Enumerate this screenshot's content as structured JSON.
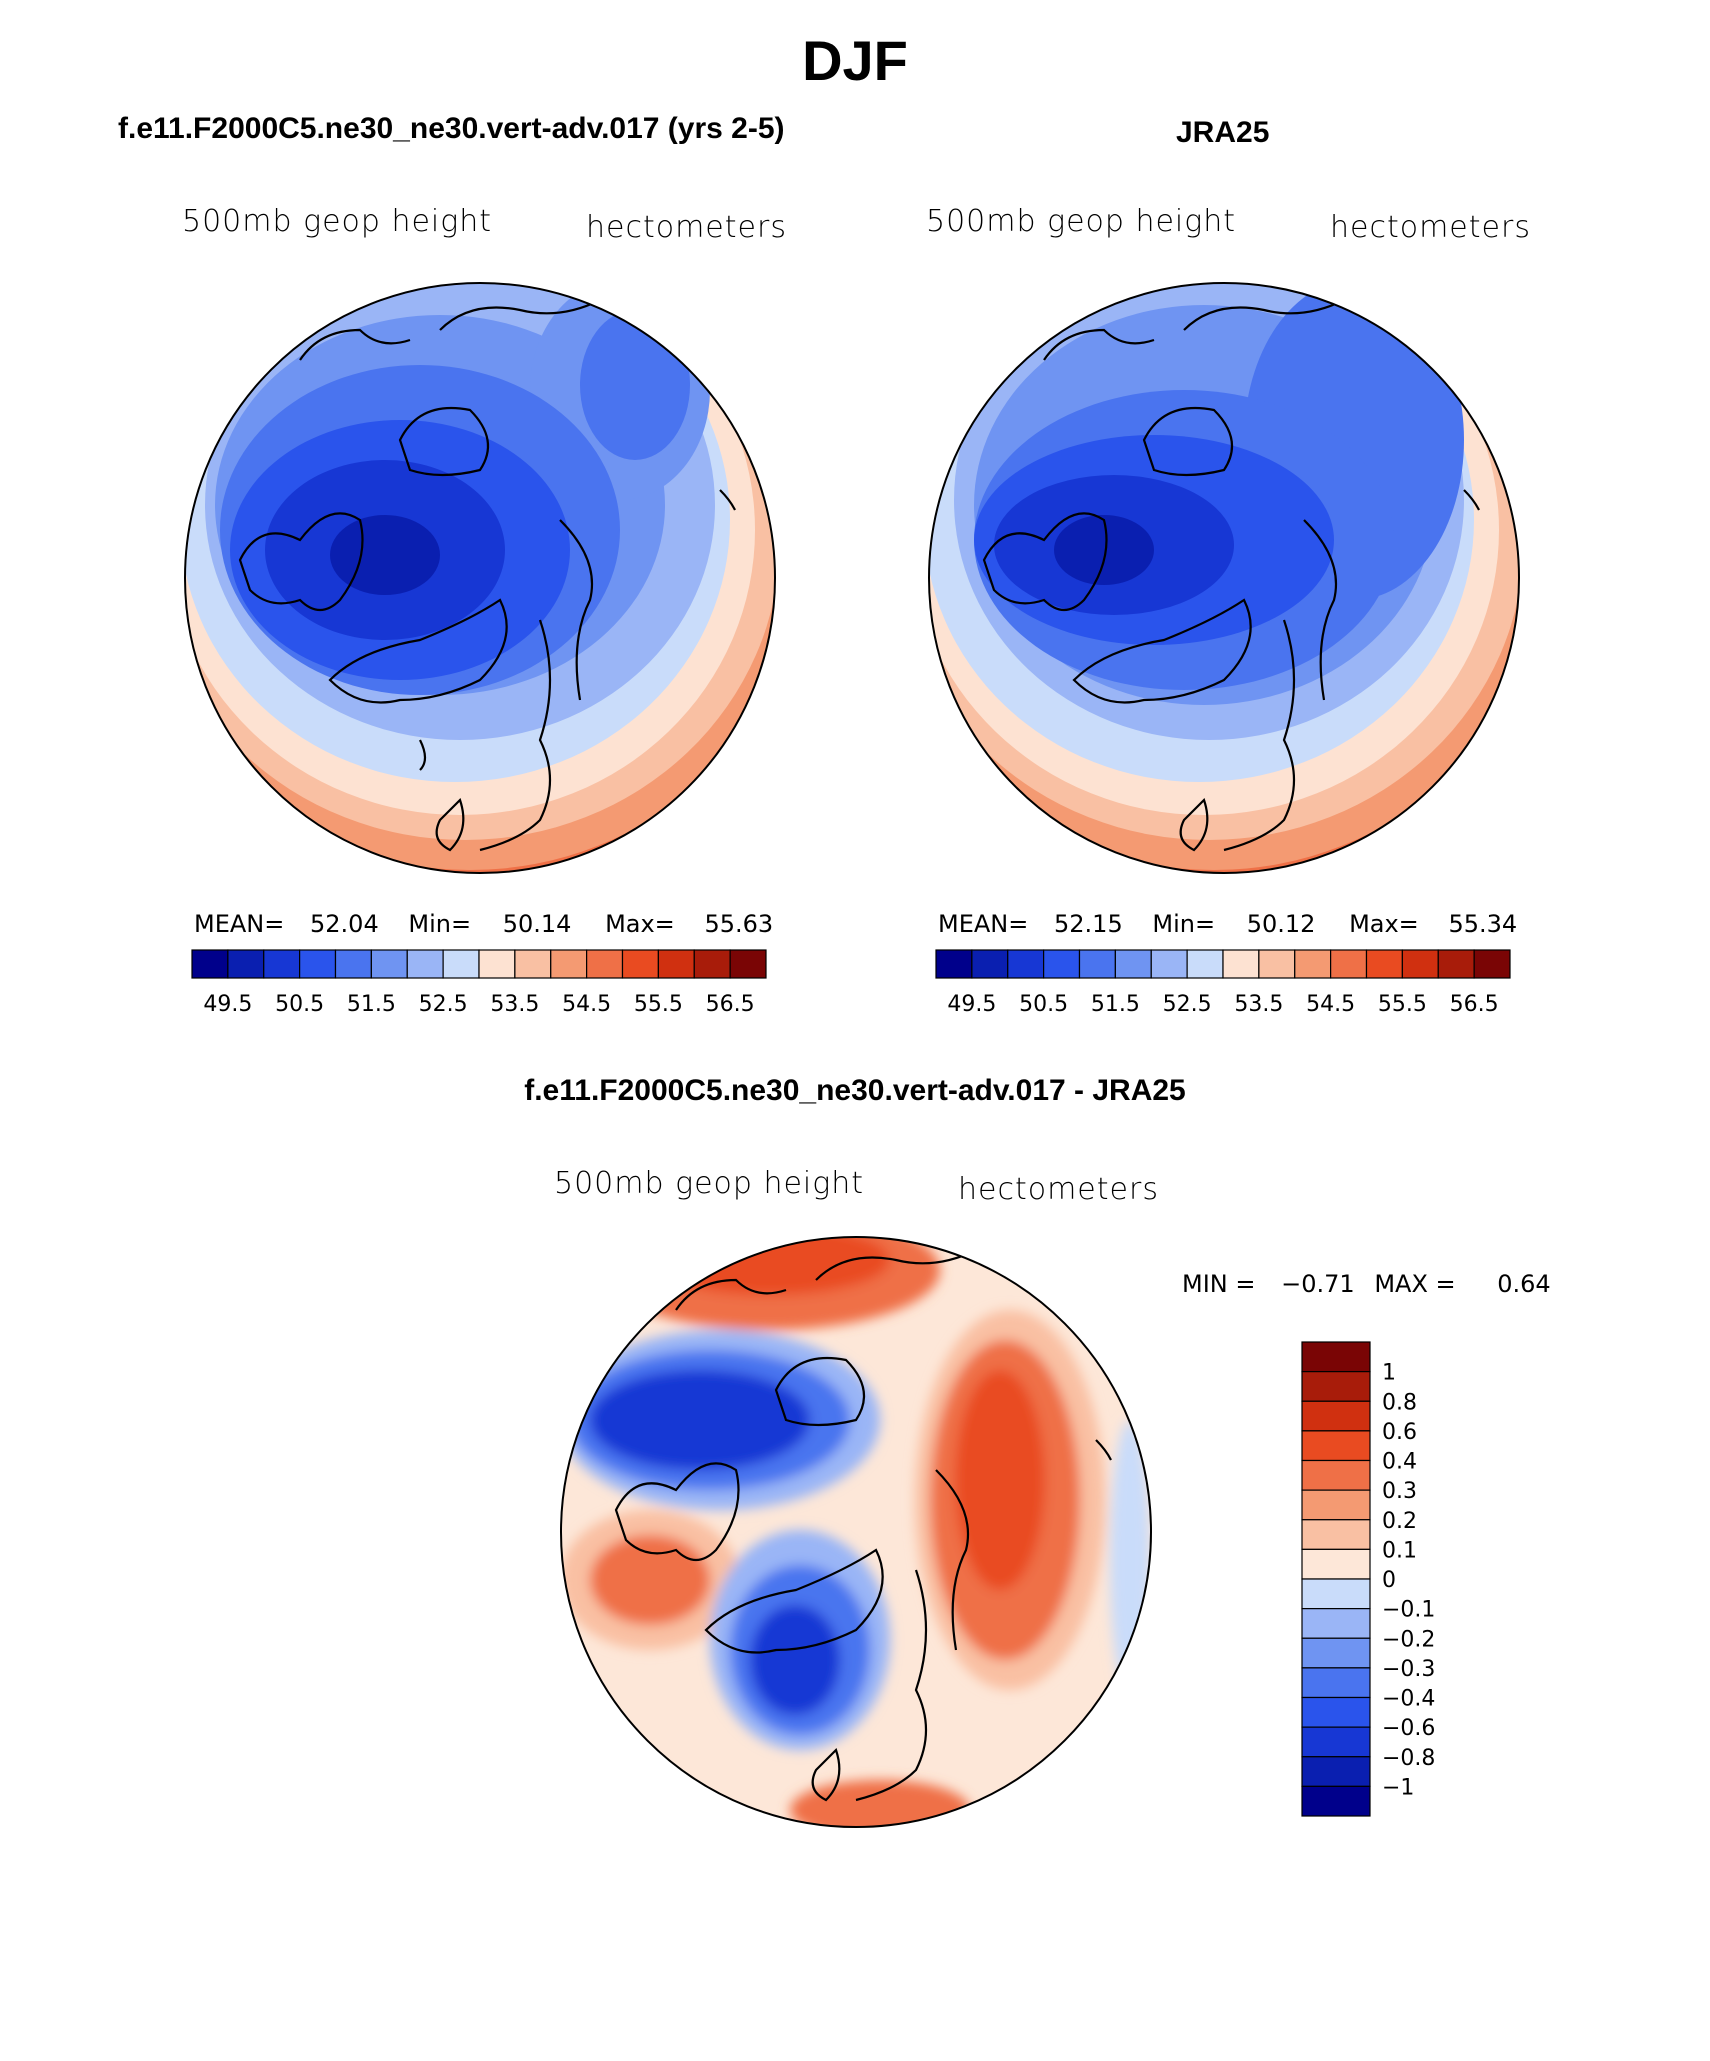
{
  "title": "DJF",
  "panels": [
    {
      "id": "model",
      "title": "f.e11.F2000C5.ne30_ne30.vert-adv.017 (yrs 2-5)",
      "left_label": "500mb  geop  height",
      "right_label": "hectometers",
      "stats": {
        "mean_label": "MEAN=",
        "mean": "52.04",
        "min_label": "Min=",
        "min": "50.14",
        "max_label": "Max=",
        "max": "55.63"
      }
    },
    {
      "id": "obs",
      "title": "JRA25",
      "left_label": "500mb  geop  height",
      "right_label": "hectometers",
      "stats": {
        "mean_label": "MEAN=",
        "mean": "52.15",
        "min_label": "Min=",
        "min": "50.12",
        "max_label": "Max=",
        "max": "55.34"
      }
    }
  ],
  "diff_panel": {
    "title": "f.e11.F2000C5.ne30_ne30.vert-adv.017 - JRA25",
    "left_label": "500mb  geop  height",
    "right_label": "hectometers",
    "minmax": {
      "min_label": "MIN =",
      "min": "−0.71",
      "max_label": "MAX =",
      "max": "0.64"
    }
  },
  "colorbars": {
    "absolute": {
      "colors": [
        "#00008b",
        "#0a1fb0",
        "#1737d4",
        "#2a54ec",
        "#4a74ef",
        "#6f94f2",
        "#9ab5f6",
        "#c9dcfa",
        "#fde2d2",
        "#f9c0a3",
        "#f49a72",
        "#ef7047",
        "#e94b21",
        "#d03010",
        "#a81c0a",
        "#7a0505"
      ],
      "labels": [
        "49.5",
        "50.5",
        "51.5",
        "52.5",
        "53.5",
        "54.5",
        "55.5",
        "56.5"
      ]
    },
    "difference": {
      "colors": [
        "#00008b",
        "#0a1fb0",
        "#1737d4",
        "#2a54ec",
        "#4a74ef",
        "#6f94f2",
        "#9ab5f6",
        "#c9dcfa",
        "#fde7d8",
        "#f9c0a3",
        "#f49a72",
        "#ef7047",
        "#e94b21",
        "#d03010",
        "#a81c0a",
        "#7a0505"
      ],
      "labels": [
        "−1",
        "−0.8",
        "−0.6",
        "−0.4",
        "−0.3",
        "−0.2",
        "−0.1",
        "0",
        "0.1",
        "0.2",
        "0.3",
        "0.4",
        "0.6",
        "0.8",
        "1"
      ]
    }
  },
  "maps": {
    "projection": "polar stereographic, north pole",
    "fields": [
      "500mb geopotential height (model)",
      "500mb geopotential height (JRA25)",
      "difference"
    ]
  }
}
